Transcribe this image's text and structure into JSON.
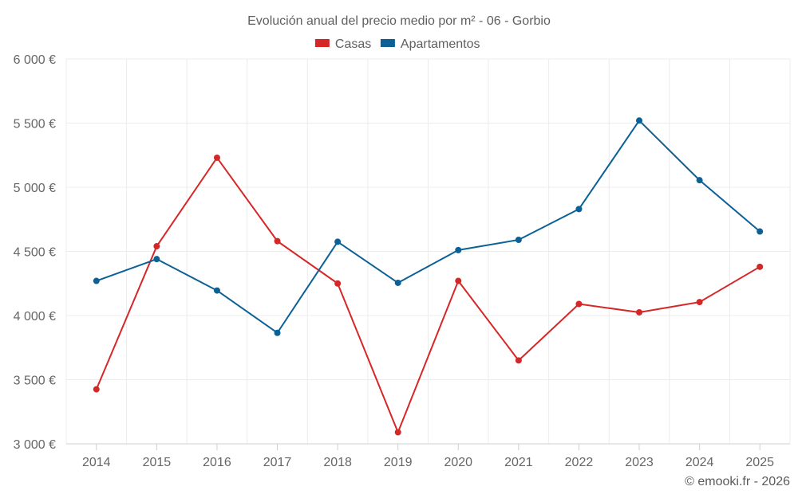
{
  "chart_data": {
    "type": "line",
    "title": "Evolución anual del precio medio por m² - 06 - Gorbio",
    "categories": [
      "2014",
      "2015",
      "2016",
      "2017",
      "2018",
      "2019",
      "2020",
      "2021",
      "2022",
      "2023",
      "2024",
      "2025"
    ],
    "series": [
      {
        "name": "Casas",
        "color": "#d62728",
        "values": [
          3425,
          4540,
          5230,
          4580,
          4250,
          3090,
          4270,
          3650,
          4090,
          4025,
          4105,
          4380
        ]
      },
      {
        "name": "Apartamentos",
        "color": "#0b6196",
        "values": [
          4270,
          4440,
          4195,
          3865,
          4575,
          4255,
          4510,
          4590,
          4830,
          5520,
          5055,
          4655
        ]
      }
    ],
    "ylim": [
      3000,
      6000
    ],
    "yticks": [
      3000,
      3500,
      4000,
      4500,
      5000,
      5500,
      6000
    ],
    "ytick_labels": [
      "3 000 €",
      "3 500 €",
      "4 000 €",
      "4 500 €",
      "5 000 €",
      "5 500 €",
      "6 000 €"
    ],
    "xlabel": "",
    "ylabel": "",
    "grid": true,
    "legend": "top-center"
  },
  "credit": "© emooki.fr - 2026"
}
